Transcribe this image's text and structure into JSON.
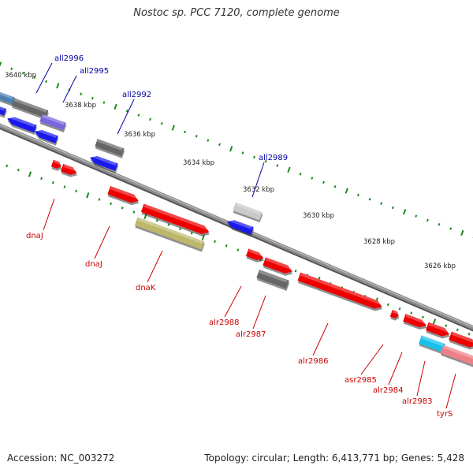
{
  "title": "Nostoc sp. PCC 7120, complete genome",
  "footer": {
    "accession": "Accession: NC_003272",
    "summary": "Topology: circular; Length: 6,413,771 bp; Genes: 5,428"
  },
  "colors": {
    "backbone": "#8a8a8a",
    "tick": "#1d8a1d",
    "forward_label": "#0000aa",
    "reverse_label": "#cc0000",
    "red": "#ee0000",
    "blue": "#1a1aee",
    "grey": "#666666",
    "light_grey": "#c9c9c9",
    "purple": "#7a66dd",
    "olive": "#bdb76b",
    "cyan": "#18c0ee",
    "pink": "#ee7f86",
    "steel": "#4a7fb0"
  },
  "kbp_labels": [
    "3640 kbp",
    "3638 kbp",
    "3636 kbp",
    "3634 kbp",
    "3632 kbp",
    "3630 kbp",
    "3628 kbp",
    "3626 kbp"
  ],
  "forward_genes": [
    "all2996",
    "all2995",
    "all2992",
    "all2989"
  ],
  "reverse_genes": [
    "dnaJ",
    "dnaJ",
    "dnaK",
    "alr2988",
    "alr2987",
    "alr2986",
    "asr2985",
    "alr2984",
    "alr2983",
    "tyrS"
  ]
}
